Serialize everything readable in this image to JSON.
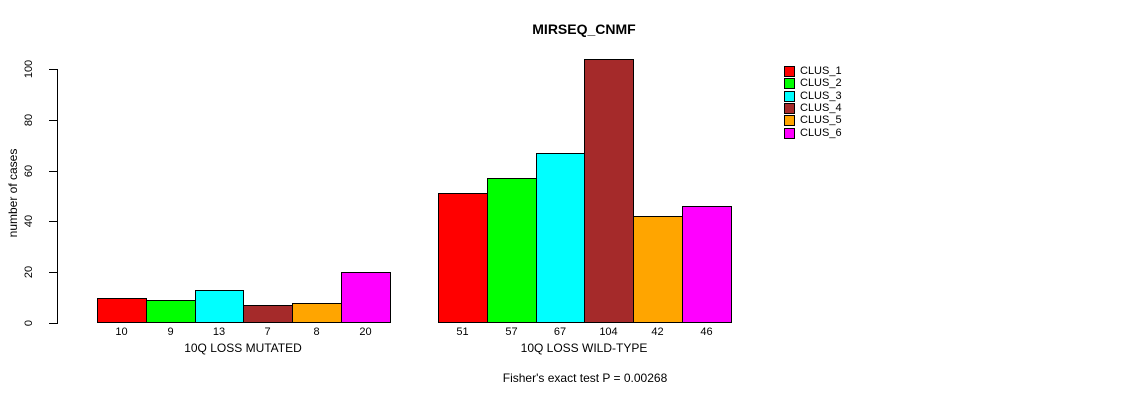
{
  "chart_data": {
    "type": "bar",
    "title": "MIRSEQ_CNMF",
    "xlabel": "",
    "ylabel": "number of cases",
    "ylim": [
      0,
      104
    ],
    "yticks": [
      0,
      20,
      40,
      60,
      80,
      100
    ],
    "grid": false,
    "legend_position": "right",
    "series_colors": [
      "#FF0000",
      "#00FF00",
      "#00FFFF",
      "#A52A2A",
      "#FFA500",
      "#FF00FF"
    ],
    "legend": [
      {
        "label": "CLUS_1",
        "color": "#FF0000"
      },
      {
        "label": "CLUS_2",
        "color": "#00FF00"
      },
      {
        "label": "CLUS_3",
        "color": "#00FFFF"
      },
      {
        "label": "CLUS_4",
        "color": "#A52A2A"
      },
      {
        "label": "CLUS_5",
        "color": "#FFA500"
      },
      {
        "label": "CLUS_6",
        "color": "#FF00FF"
      }
    ],
    "groups": [
      {
        "label": "10Q LOSS MUTATED",
        "bar_labels": [
          "10",
          "9",
          "13",
          "7",
          "8",
          "20"
        ],
        "values": [
          10,
          9,
          13,
          7,
          8,
          20
        ]
      },
      {
        "label": "10Q LOSS WILD-TYPE",
        "bar_labels": [
          "51",
          "57",
          "67",
          "104",
          "42",
          "46"
        ],
        "values": [
          51,
          57,
          67,
          104,
          42,
          46
        ]
      }
    ],
    "annotation": "Fisher's exact test P = 0.00268"
  }
}
